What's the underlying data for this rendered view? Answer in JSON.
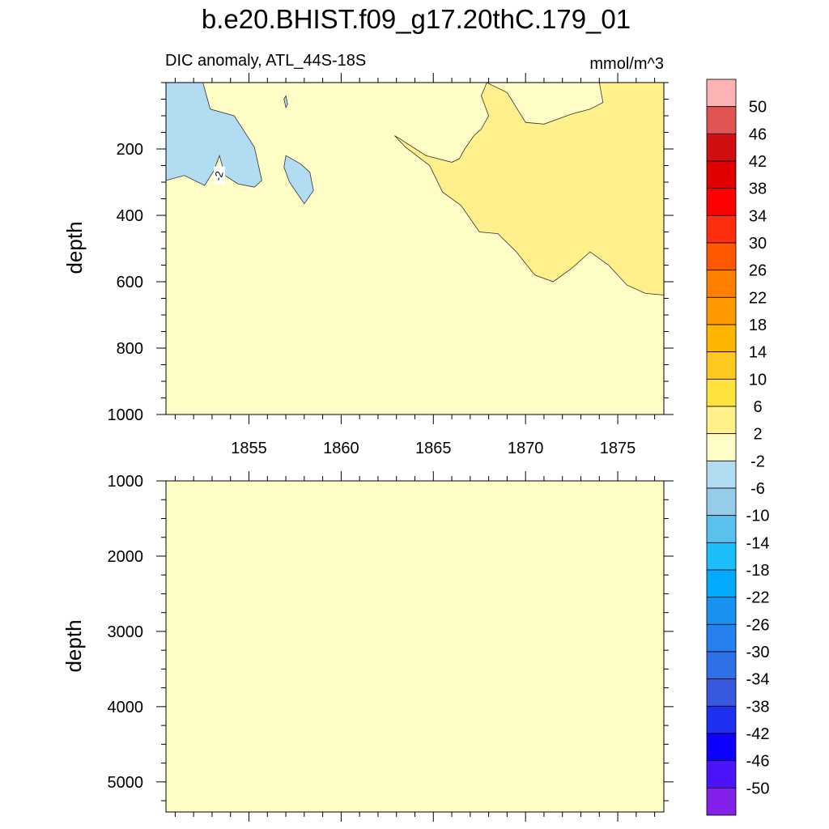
{
  "title": "b.e20.BHIST.f09_g17.20thC.179_01",
  "colors": {
    "plot_bg": "#fefdc6",
    "axis": "#000000"
  },
  "colorbar": {
    "labels": [
      "50",
      "46",
      "42",
      "38",
      "34",
      "30",
      "26",
      "22",
      "18",
      "14",
      "10",
      "6",
      "2",
      "-2",
      "-6",
      "-10",
      "-14",
      "-18",
      "-22",
      "-26",
      "-30",
      "-34",
      "-38",
      "-42",
      "-46",
      "-50"
    ],
    "colors": [
      "#fdb3b3",
      "#e15454",
      "#d01010",
      "#e00000",
      "#ff0000",
      "#ff2e10",
      "#ff5800",
      "#ff7f00",
      "#ff9900",
      "#ffb400",
      "#ffc81e",
      "#ffe33c",
      "#fff08c",
      "#fefdc6",
      "#b2dcf2",
      "#96cbea",
      "#5ac1ef",
      "#1cbdf9",
      "#00aaff",
      "#1893f2",
      "#2680ee",
      "#2f6fe8",
      "#3858df",
      "#1d30ef",
      "#0d00ff",
      "#4b14fb",
      "#8320ea"
    ]
  },
  "chart_data": [
    {
      "type": "heatmap",
      "subtitle_left": "DIC anomaly, ATL_44S-18S",
      "subtitle_right": "mmol/m^3",
      "ylabel": "depth",
      "y_reversed": true,
      "xlim": [
        1850.5,
        1877.5
      ],
      "ylim": [
        0,
        1000
      ],
      "x_ticks": [
        "1855",
        "1860",
        "1865",
        "1870",
        "1875"
      ],
      "y_ticks": [
        "200",
        "400",
        "600",
        "800",
        "1000"
      ],
      "background_level": "-2 to 2",
      "contour_label": "-2",
      "regions": [
        {
          "level": "-6 to -2",
          "points": [
            [
              1850.5,
              0
            ],
            [
              1852.5,
              0
            ],
            [
              1852.9,
              80
            ],
            [
              1854.2,
              100
            ],
            [
              1855.3,
              195
            ],
            [
              1855.7,
              295
            ],
            [
              1855.3,
              315
            ],
            [
              1854.4,
              305
            ],
            [
              1853.7,
              280
            ],
            [
              1853.4,
              220
            ],
            [
              1853.1,
              265
            ],
            [
              1852.6,
              310
            ],
            [
              1851.5,
              280
            ],
            [
              1850.5,
              295
            ]
          ]
        },
        {
          "level": "-6 to -2",
          "points": [
            [
              1857.0,
              220
            ],
            [
              1857.8,
              245
            ],
            [
              1858.3,
              270
            ],
            [
              1858.5,
              325
            ],
            [
              1858.0,
              365
            ],
            [
              1857.2,
              300
            ],
            [
              1856.9,
              255
            ]
          ]
        },
        {
          "level": "-6 to -2",
          "points": [
            [
              1856.9,
              50
            ],
            [
              1857.0,
              40
            ],
            [
              1857.1,
              65
            ],
            [
              1857.0,
              75
            ]
          ]
        },
        {
          "level": "2 to 6",
          "points": [
            [
              1874.0,
              0
            ],
            [
              1877.5,
              0
            ],
            [
              1877.5,
              640
            ],
            [
              1876.5,
              635
            ],
            [
              1875.5,
              610
            ],
            [
              1874.5,
              550
            ],
            [
              1873.5,
              510
            ],
            [
              1872.5,
              560
            ],
            [
              1871.5,
              600
            ],
            [
              1870.5,
              580
            ],
            [
              1869.5,
              510
            ],
            [
              1868.5,
              455
            ],
            [
              1867.5,
              450
            ],
            [
              1866.5,
              370
            ],
            [
              1865.5,
              330
            ],
            [
              1864.8,
              250
            ],
            [
              1863.5,
              195
            ],
            [
              1862.9,
              160
            ],
            [
              1863.2,
              170
            ],
            [
              1864.6,
              220
            ],
            [
              1866.0,
              240
            ],
            [
              1866.4,
              230
            ],
            [
              1866.7,
              200
            ],
            [
              1867.2,
              160
            ],
            [
              1867.6,
              140
            ],
            [
              1868.0,
              100
            ],
            [
              1867.6,
              40
            ],
            [
              1867.9,
              0
            ],
            [
              1869.0,
              30
            ],
            [
              1870.0,
              120
            ],
            [
              1871.0,
              125
            ],
            [
              1872.5,
              95
            ],
            [
              1873.5,
              80
            ],
            [
              1874.2,
              60
            ]
          ]
        }
      ]
    },
    {
      "type": "heatmap",
      "ylabel": "depth",
      "y_reversed": true,
      "xlim": [
        1850.5,
        1877.5
      ],
      "ylim": [
        1000,
        5400
      ],
      "x_ticks": [],
      "y_ticks": [
        "1000",
        "2000",
        "3000",
        "4000",
        "5000"
      ],
      "background_level": "-2 to 2",
      "regions": []
    }
  ]
}
